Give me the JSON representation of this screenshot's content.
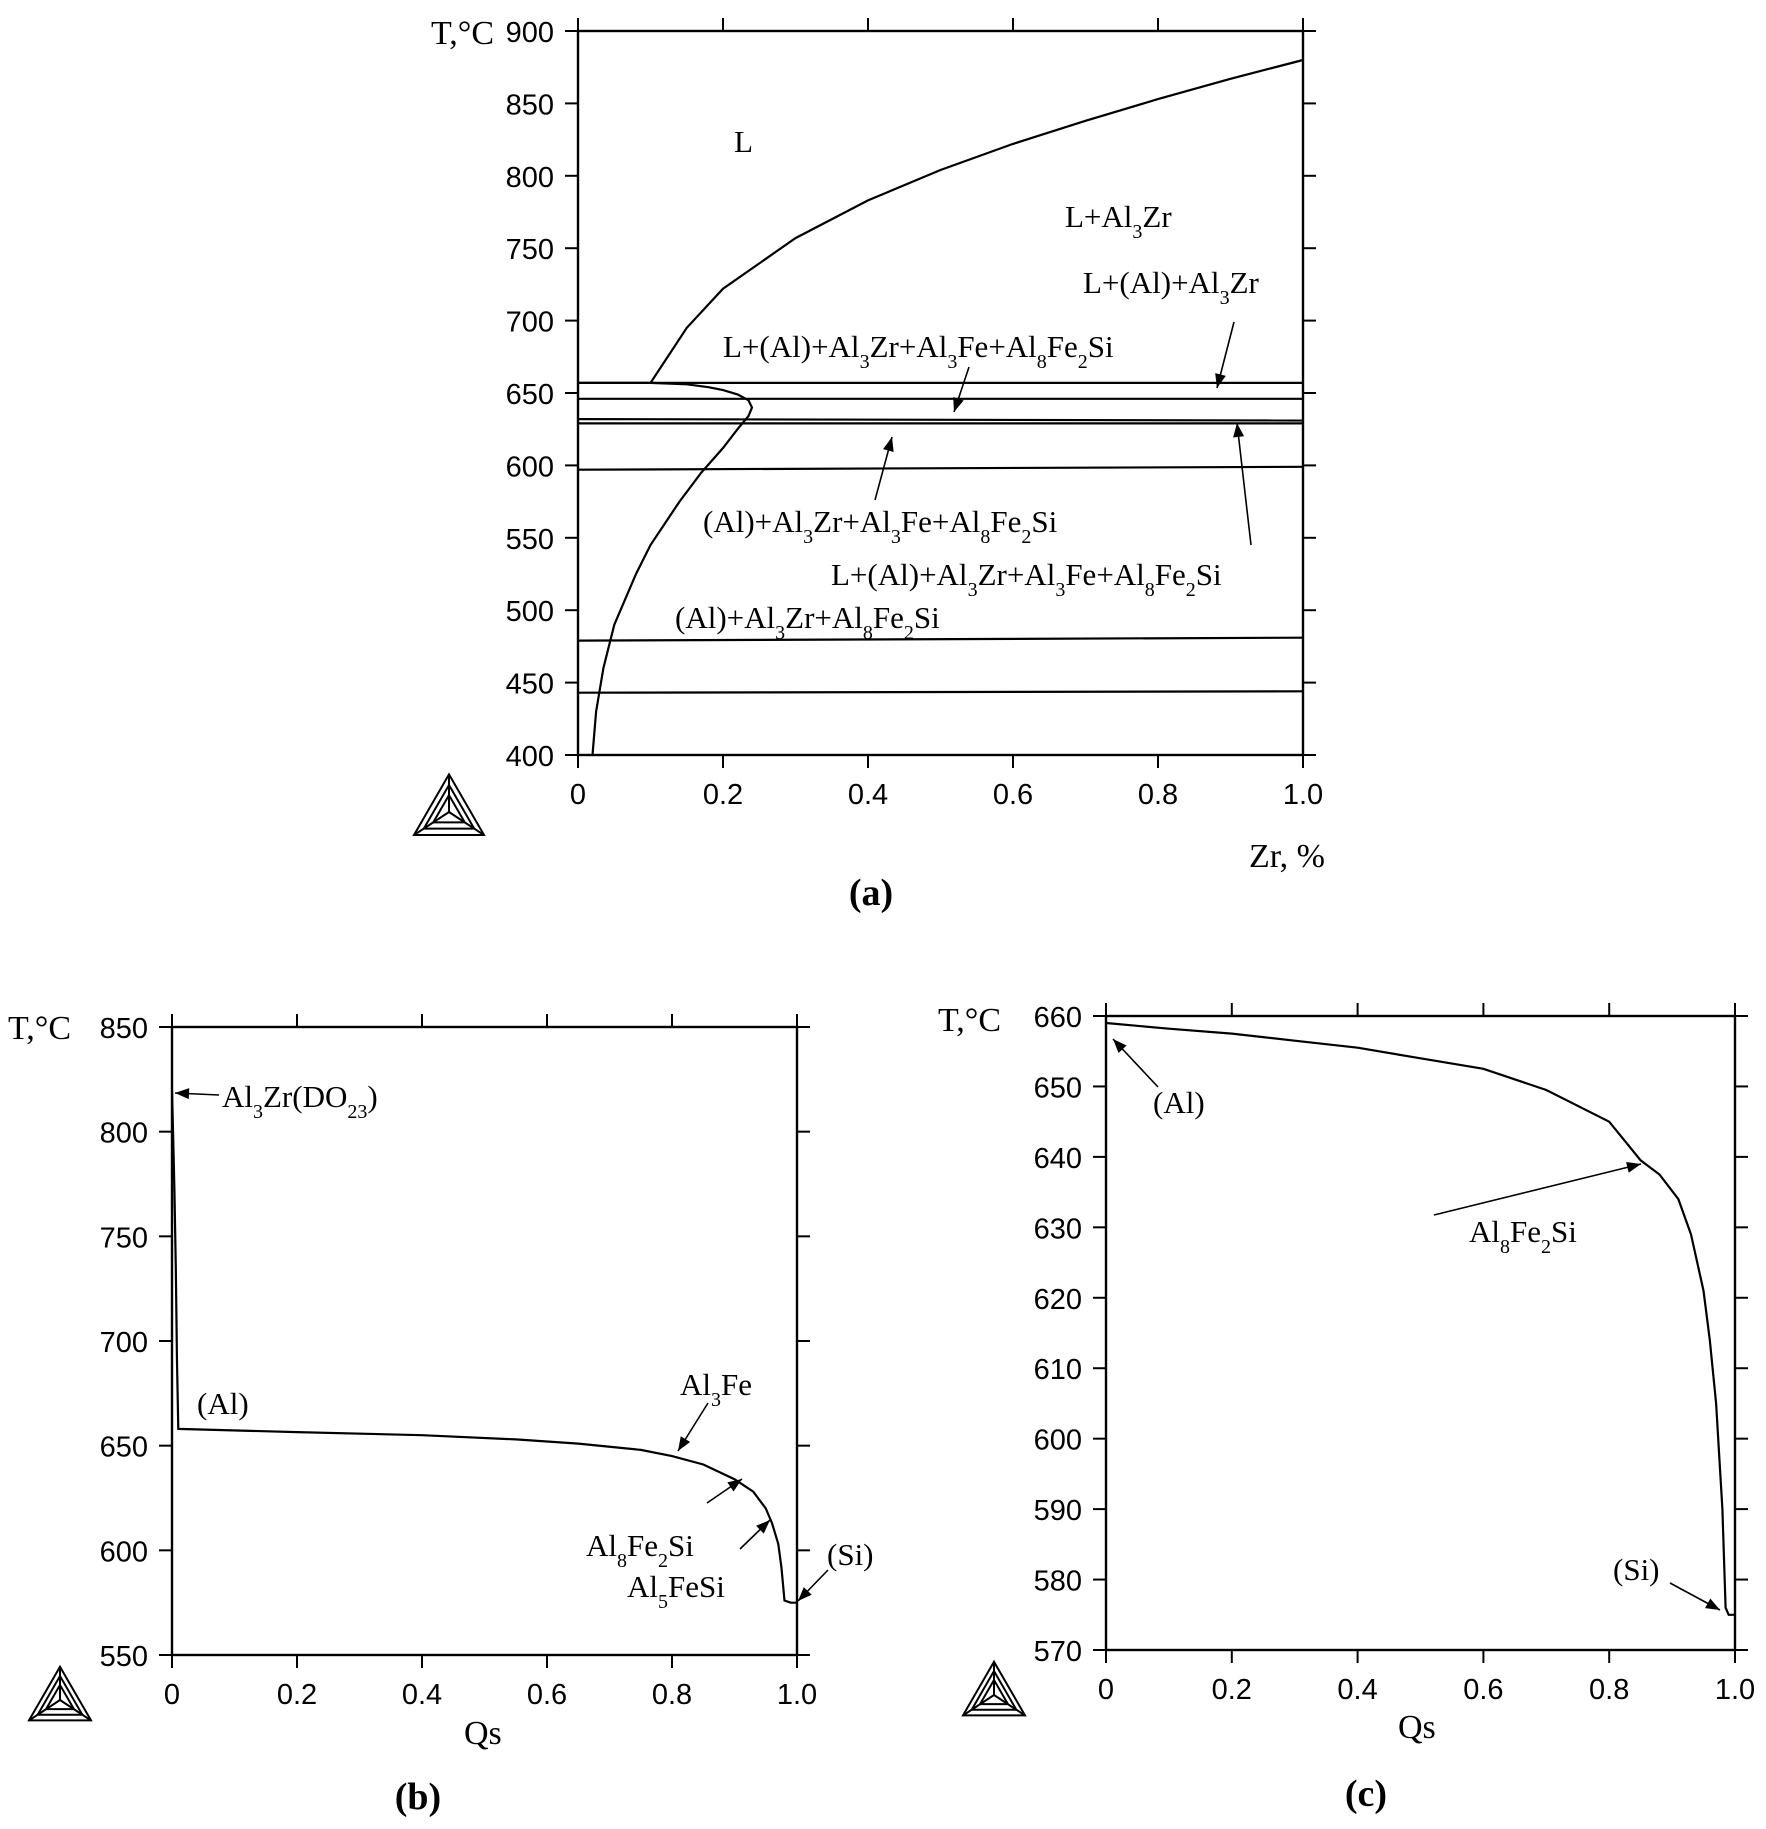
{
  "chart_data": [
    {
      "panel": "(a)",
      "type": "line",
      "xlabel": "Zr, %",
      "ylabel": "T,°C",
      "xlim": [
        0,
        1.0
      ],
      "ylim": [
        400,
        900
      ],
      "xticks": [
        "0",
        "0.2",
        "0.4",
        "0.6",
        "0.8",
        "1.0"
      ],
      "yticks": [
        "400",
        "450",
        "500",
        "550",
        "600",
        "650",
        "700",
        "750",
        "800",
        "850",
        "900"
      ],
      "series": [
        {
          "x": [
            0.1,
            0.15,
            0.2,
            0.3,
            0.4,
            0.5,
            0.6,
            0.7,
            0.8,
            0.9,
            1.0
          ],
          "y": [
            657,
            695,
            722,
            757,
            783,
            804,
            822,
            838,
            853,
            867,
            880
          ]
        },
        {
          "x": [
            0.0,
            0.1,
            0.15,
            0.18,
            0.2,
            0.22,
            0.235,
            0.24,
            0.235,
            0.22,
            0.2,
            0.17,
            0.14,
            0.1,
            0.08,
            0.05,
            0.035,
            0.025,
            0.02
          ],
          "y": [
            657,
            657,
            656,
            654,
            652,
            649,
            645,
            640,
            634,
            625,
            612,
            595,
            575,
            545,
            525,
            490,
            460,
            430,
            400
          ]
        },
        {
          "x": [
            0.0,
            1.0
          ],
          "y": [
            657,
            657
          ]
        },
        {
          "x": [
            0.0,
            1.0
          ],
          "y": [
            646,
            646
          ]
        },
        {
          "x": [
            0.0,
            1.0
          ],
          "y": [
            632,
            631
          ]
        },
        {
          "x": [
            0.0,
            1.0
          ],
          "y": [
            629,
            629
          ]
        },
        {
          "x": [
            0.0,
            1.0
          ],
          "y": [
            597,
            599
          ]
        },
        {
          "x": [
            0.0,
            1.0
          ],
          "y": [
            479,
            481
          ]
        },
        {
          "x": [
            0.0,
            1.0
          ],
          "y": [
            443,
            444
          ]
        }
      ],
      "annotations": [
        {
          "text": "L",
          "x": 0.225,
          "y": 820
        },
        {
          "text": "L+Al3Zr",
          "x": 0.665,
          "y": 768
        },
        {
          "text": "L+(Al)+Al3Zr",
          "x": 0.69,
          "y": 725
        },
        {
          "text": "L+(Al)+Al3Zr+Al3Fe+Al8Fe2Si",
          "x": 0.2,
          "y": 680
        },
        {
          "text": "(Al)+Al3Zr+Al3Fe+Al8Fe2Si",
          "x": 0.17,
          "y": 557
        },
        {
          "text": "L+(Al)+Al3Zr+Al3Fe+Al8Fe2Si",
          "x": 0.345,
          "y": 522
        },
        {
          "text": "(Al)+Al3Zr+Al8Fe2Si",
          "x": 0.13,
          "y": 487
        }
      ]
    },
    {
      "panel": "(b)",
      "type": "line",
      "xlabel": "Qs",
      "ylabel": "T,°C",
      "xlim": [
        0,
        1.0
      ],
      "ylim": [
        550,
        850
      ],
      "xticks": [
        "0",
        "0.2",
        "0.4",
        "0.6",
        "0.8",
        "1.0"
      ],
      "yticks": [
        "550",
        "600",
        "650",
        "700",
        "750",
        "800",
        "850"
      ],
      "series": [
        {
          "x": [
            0.0,
            0.002,
            0.004,
            0.006,
            0.008,
            0.01,
            0.2,
            0.4,
            0.55,
            0.65,
            0.75,
            0.8,
            0.85,
            0.9,
            0.93,
            0.95,
            0.96,
            0.97,
            0.975,
            0.98,
            0.99,
            1.0
          ],
          "y": [
            820,
            795,
            770,
            735,
            690,
            658,
            656.5,
            655,
            653,
            651,
            648,
            645,
            641,
            634,
            628,
            620,
            613,
            603,
            592,
            576,
            575,
            575
          ]
        }
      ],
      "annotations": [
        {
          "text": "Al3Zr(DO23)",
          "x": 0.08,
          "y": 817
        },
        {
          "text": "(Al)",
          "x": 0.04,
          "y": 671
        },
        {
          "text": "Al3Fe",
          "x": 0.815,
          "y": 672
        },
        {
          "text": "Al8Fe2Si",
          "x": 0.665,
          "y": 604
        },
        {
          "text": "Al5FeSi",
          "x": 0.725,
          "y": 586
        },
        {
          "text": "(Si)",
          "x": 1.05,
          "y": 598
        }
      ]
    },
    {
      "panel": "(c)",
      "type": "line",
      "xlabel": "Qs",
      "ylabel": "T,°C",
      "xlim": [
        0,
        1.0
      ],
      "ylim": [
        570,
        660
      ],
      "xticks": [
        "0",
        "0.2",
        "0.4",
        "0.6",
        "0.8",
        "1.0"
      ],
      "yticks": [
        "570",
        "580",
        "590",
        "600",
        "610",
        "620",
        "630",
        "640",
        "650",
        "660"
      ],
      "series": [
        {
          "x": [
            0.0,
            0.1,
            0.2,
            0.3,
            0.4,
            0.5,
            0.6,
            0.7,
            0.8,
            0.85,
            0.88,
            0.91,
            0.93,
            0.95,
            0.96,
            0.97,
            0.98,
            0.985,
            0.99,
            1.0
          ],
          "y": [
            659,
            658.2,
            657.5,
            656.5,
            655.5,
            654,
            652.5,
            649.5,
            645,
            639.5,
            637.5,
            634,
            629,
            621,
            614,
            605,
            590,
            576,
            575,
            575
          ]
        }
      ],
      "annotations": [
        {
          "text": "(Al)",
          "x": 0.08,
          "y": 650
        },
        {
          "text": "Al8Fe2Si",
          "x": 0.58,
          "y": 630
        },
        {
          "text": "(Si)",
          "x": 0.81,
          "y": 580
        }
      ]
    }
  ]
}
